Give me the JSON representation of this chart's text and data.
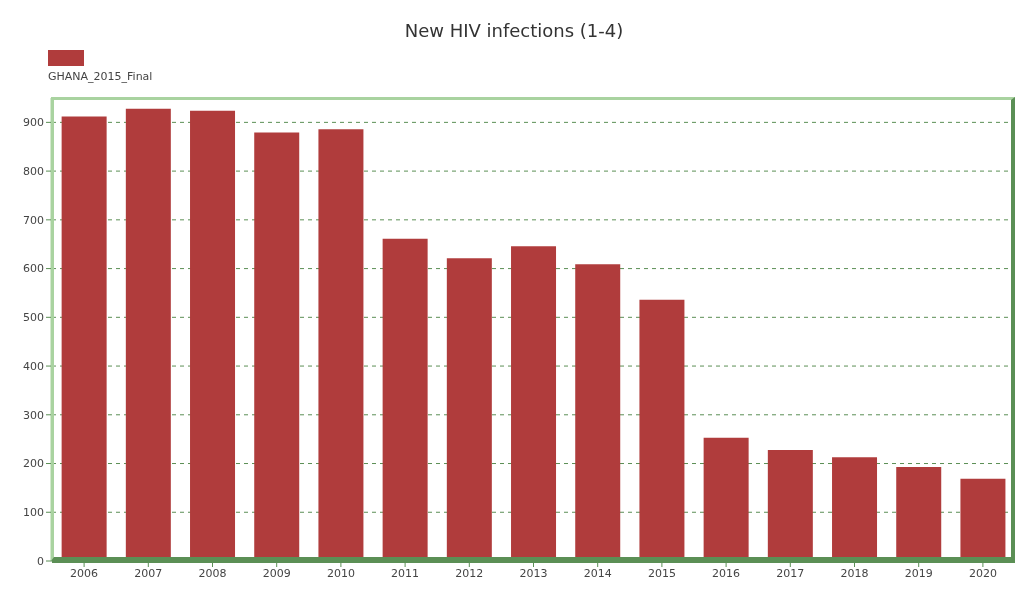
{
  "chart_data": {
    "type": "bar",
    "title": "New HIV infections (1-4)",
    "categories": [
      "2006",
      "2007",
      "2008",
      "2009",
      "2010",
      "2011",
      "2012",
      "2013",
      "2014",
      "2015",
      "2016",
      "2017",
      "2018",
      "2019",
      "2020"
    ],
    "series": [
      {
        "name": "GHANA_2015_Final",
        "color": "#b03c3c",
        "values": [
          912,
          928,
          924,
          879,
          886,
          661,
          621,
          646,
          609,
          536,
          253,
          228,
          213,
          193,
          169
        ]
      }
    ],
    "ylim": [
      0,
      950
    ],
    "yticks": [
      0,
      100,
      200,
      300,
      400,
      500,
      600,
      700,
      800,
      900
    ],
    "grid": "y",
    "legend": "top left"
  }
}
